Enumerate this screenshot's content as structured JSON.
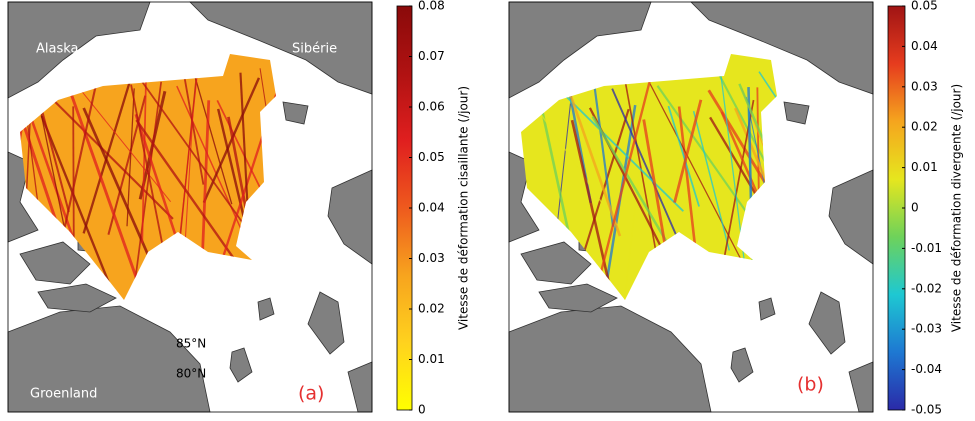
{
  "chart_data": [
    {
      "type": "map",
      "colorbar_label": "Vitesse de déformation cisaillante (/jour)",
      "clim": [
        0,
        0.08
      ],
      "cticks": [
        0,
        0.01,
        0.02,
        0.03,
        0.04,
        0.05,
        0.06,
        0.07,
        0.08
      ],
      "colormap": [
        "#ffff00",
        "#ffd21e",
        "#f7a41e",
        "#ee5a1e",
        "#e01f1f",
        "#b01212",
        "#8a0a0a"
      ],
      "places": [
        "Alaska",
        "Sibérie",
        "Groenland",
        "85°N",
        "80°N"
      ],
      "panel_label": "(a)"
    },
    {
      "type": "map",
      "colorbar_label": "Vitesse de déformation divergente (/jour)",
      "clim": [
        -0.05,
        0.05
      ],
      "cticks": [
        -0.05,
        -0.04,
        -0.03,
        -0.02,
        -0.01,
        0,
        0.01,
        0.02,
        0.03,
        0.04,
        0.05
      ],
      "colormap": [
        "#2a2aa8",
        "#1e78d2",
        "#1ec8d2",
        "#6ed25a",
        "#e6e61e",
        "#f5a51e",
        "#e63c1e",
        "#a01414"
      ],
      "panel_label": "(b)"
    }
  ]
}
